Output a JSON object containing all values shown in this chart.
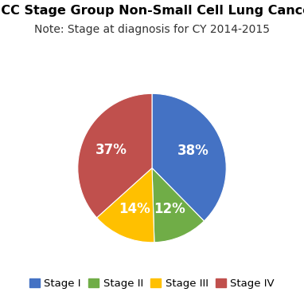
{
  "title": "AJCC Stage Group Non-Small Cell Lung Cancer",
  "subtitle": "Note: Stage at diagnosis for CY 2014-2015",
  "labels": [
    "Stage I",
    "Stage II",
    "Stage III",
    "Stage IV"
  ],
  "values": [
    38,
    12,
    14,
    37
  ],
  "colors": [
    "#4472C4",
    "#70AD47",
    "#FFC000",
    "#C0504D"
  ],
  "pct_labels": [
    "38%",
    "12%",
    "14%",
    "37%"
  ],
  "startangle": 90,
  "title_fontsize": 11.5,
  "subtitle_fontsize": 10,
  "pct_fontsize": 12,
  "legend_fontsize": 9.5
}
